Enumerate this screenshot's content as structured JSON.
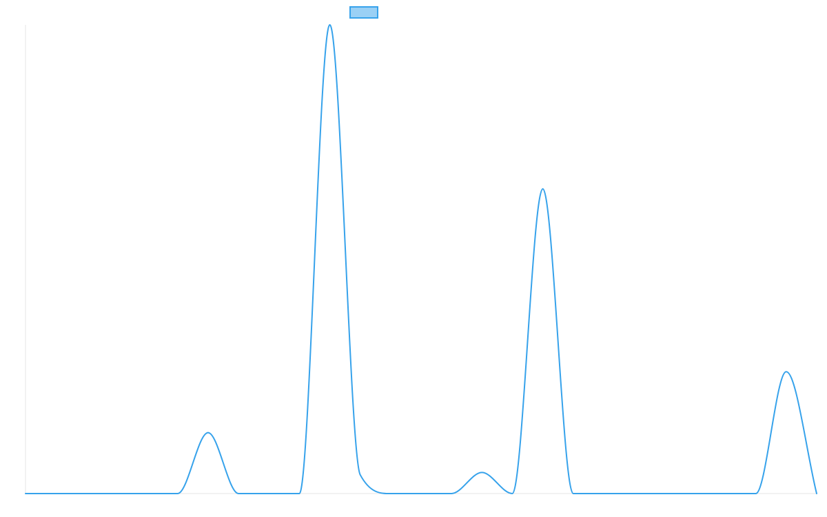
{
  "chart_data": {
    "type": "line",
    "title": "",
    "xlabel": "",
    "ylabel": "",
    "grid": false,
    "legend": {
      "placement": "top-center"
    },
    "x": [
      0,
      1,
      2,
      3,
      4,
      5,
      6,
      7,
      8,
      9,
      10,
      11,
      12,
      13,
      14,
      15,
      16,
      17,
      18,
      19,
      20,
      21,
      22,
      23,
      24,
      25,
      26
    ],
    "xlim": [
      0,
      26
    ],
    "ylim": [
      0,
      100
    ],
    "series": [
      {
        "color": "#36a2eb",
        "fill": "#9ad0f5",
        "values": [
          0,
          0,
          0,
          0,
          0,
          0,
          13,
          0,
          0,
          0,
          100,
          4,
          0,
          0,
          0,
          4.5,
          0,
          65,
          0,
          0,
          0,
          0,
          0,
          0,
          0,
          26,
          0
        ]
      }
    ]
  }
}
